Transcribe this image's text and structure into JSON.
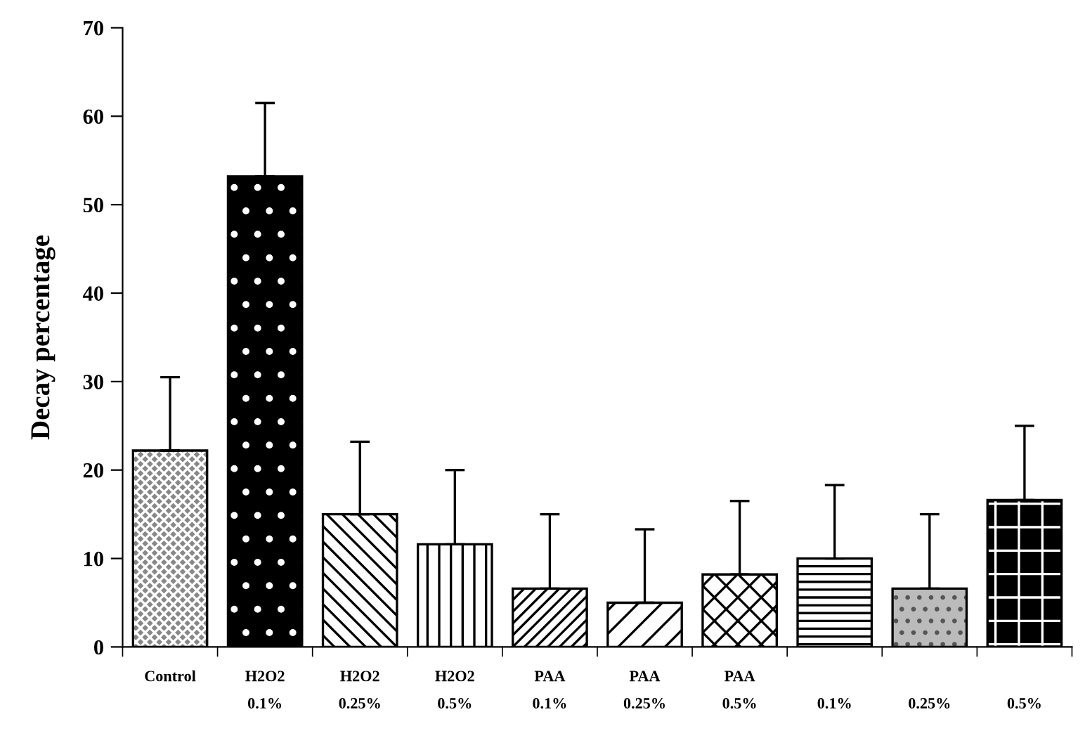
{
  "chart_data": {
    "type": "bar",
    "ylabel": "Decay percentage",
    "categories": [
      "Control",
      "H2O2\n0.1%",
      "H2O2\n0.25%",
      "H2O2\n0.5%",
      "PAA\n0.1%",
      "PAA\n0.25%",
      "PAA\n0.5%",
      "0.1%",
      "0.25%",
      "0.5%"
    ],
    "values": [
      22.2,
      53.2,
      15.0,
      11.6,
      6.6,
      5.0,
      8.2,
      10.0,
      6.6,
      16.6
    ],
    "errors": [
      [
        22.2,
        30.5
      ],
      [
        53.2,
        61.5
      ],
      [
        15.0,
        23.2
      ],
      [
        11.6,
        20.0
      ],
      [
        6.6,
        15.0
      ],
      [
        5.0,
        13.3
      ],
      [
        8.2,
        16.5
      ],
      [
        10.0,
        18.3
      ],
      [
        6.6,
        15.0
      ],
      [
        16.6,
        25.0
      ]
    ],
    "colors": [
      "#888888",
      "#000000",
      "#ffffff",
      "#ffffff",
      "#ffffff",
      "#ffffff",
      "#ffffff",
      "#ffffff",
      "#bbbbbb",
      "#000000"
    ],
    "ylim": [
      0,
      70
    ],
    "yticks": [
      0,
      10,
      20,
      30,
      40,
      50,
      60,
      70
    ],
    "grid": false,
    "legend": false
  }
}
